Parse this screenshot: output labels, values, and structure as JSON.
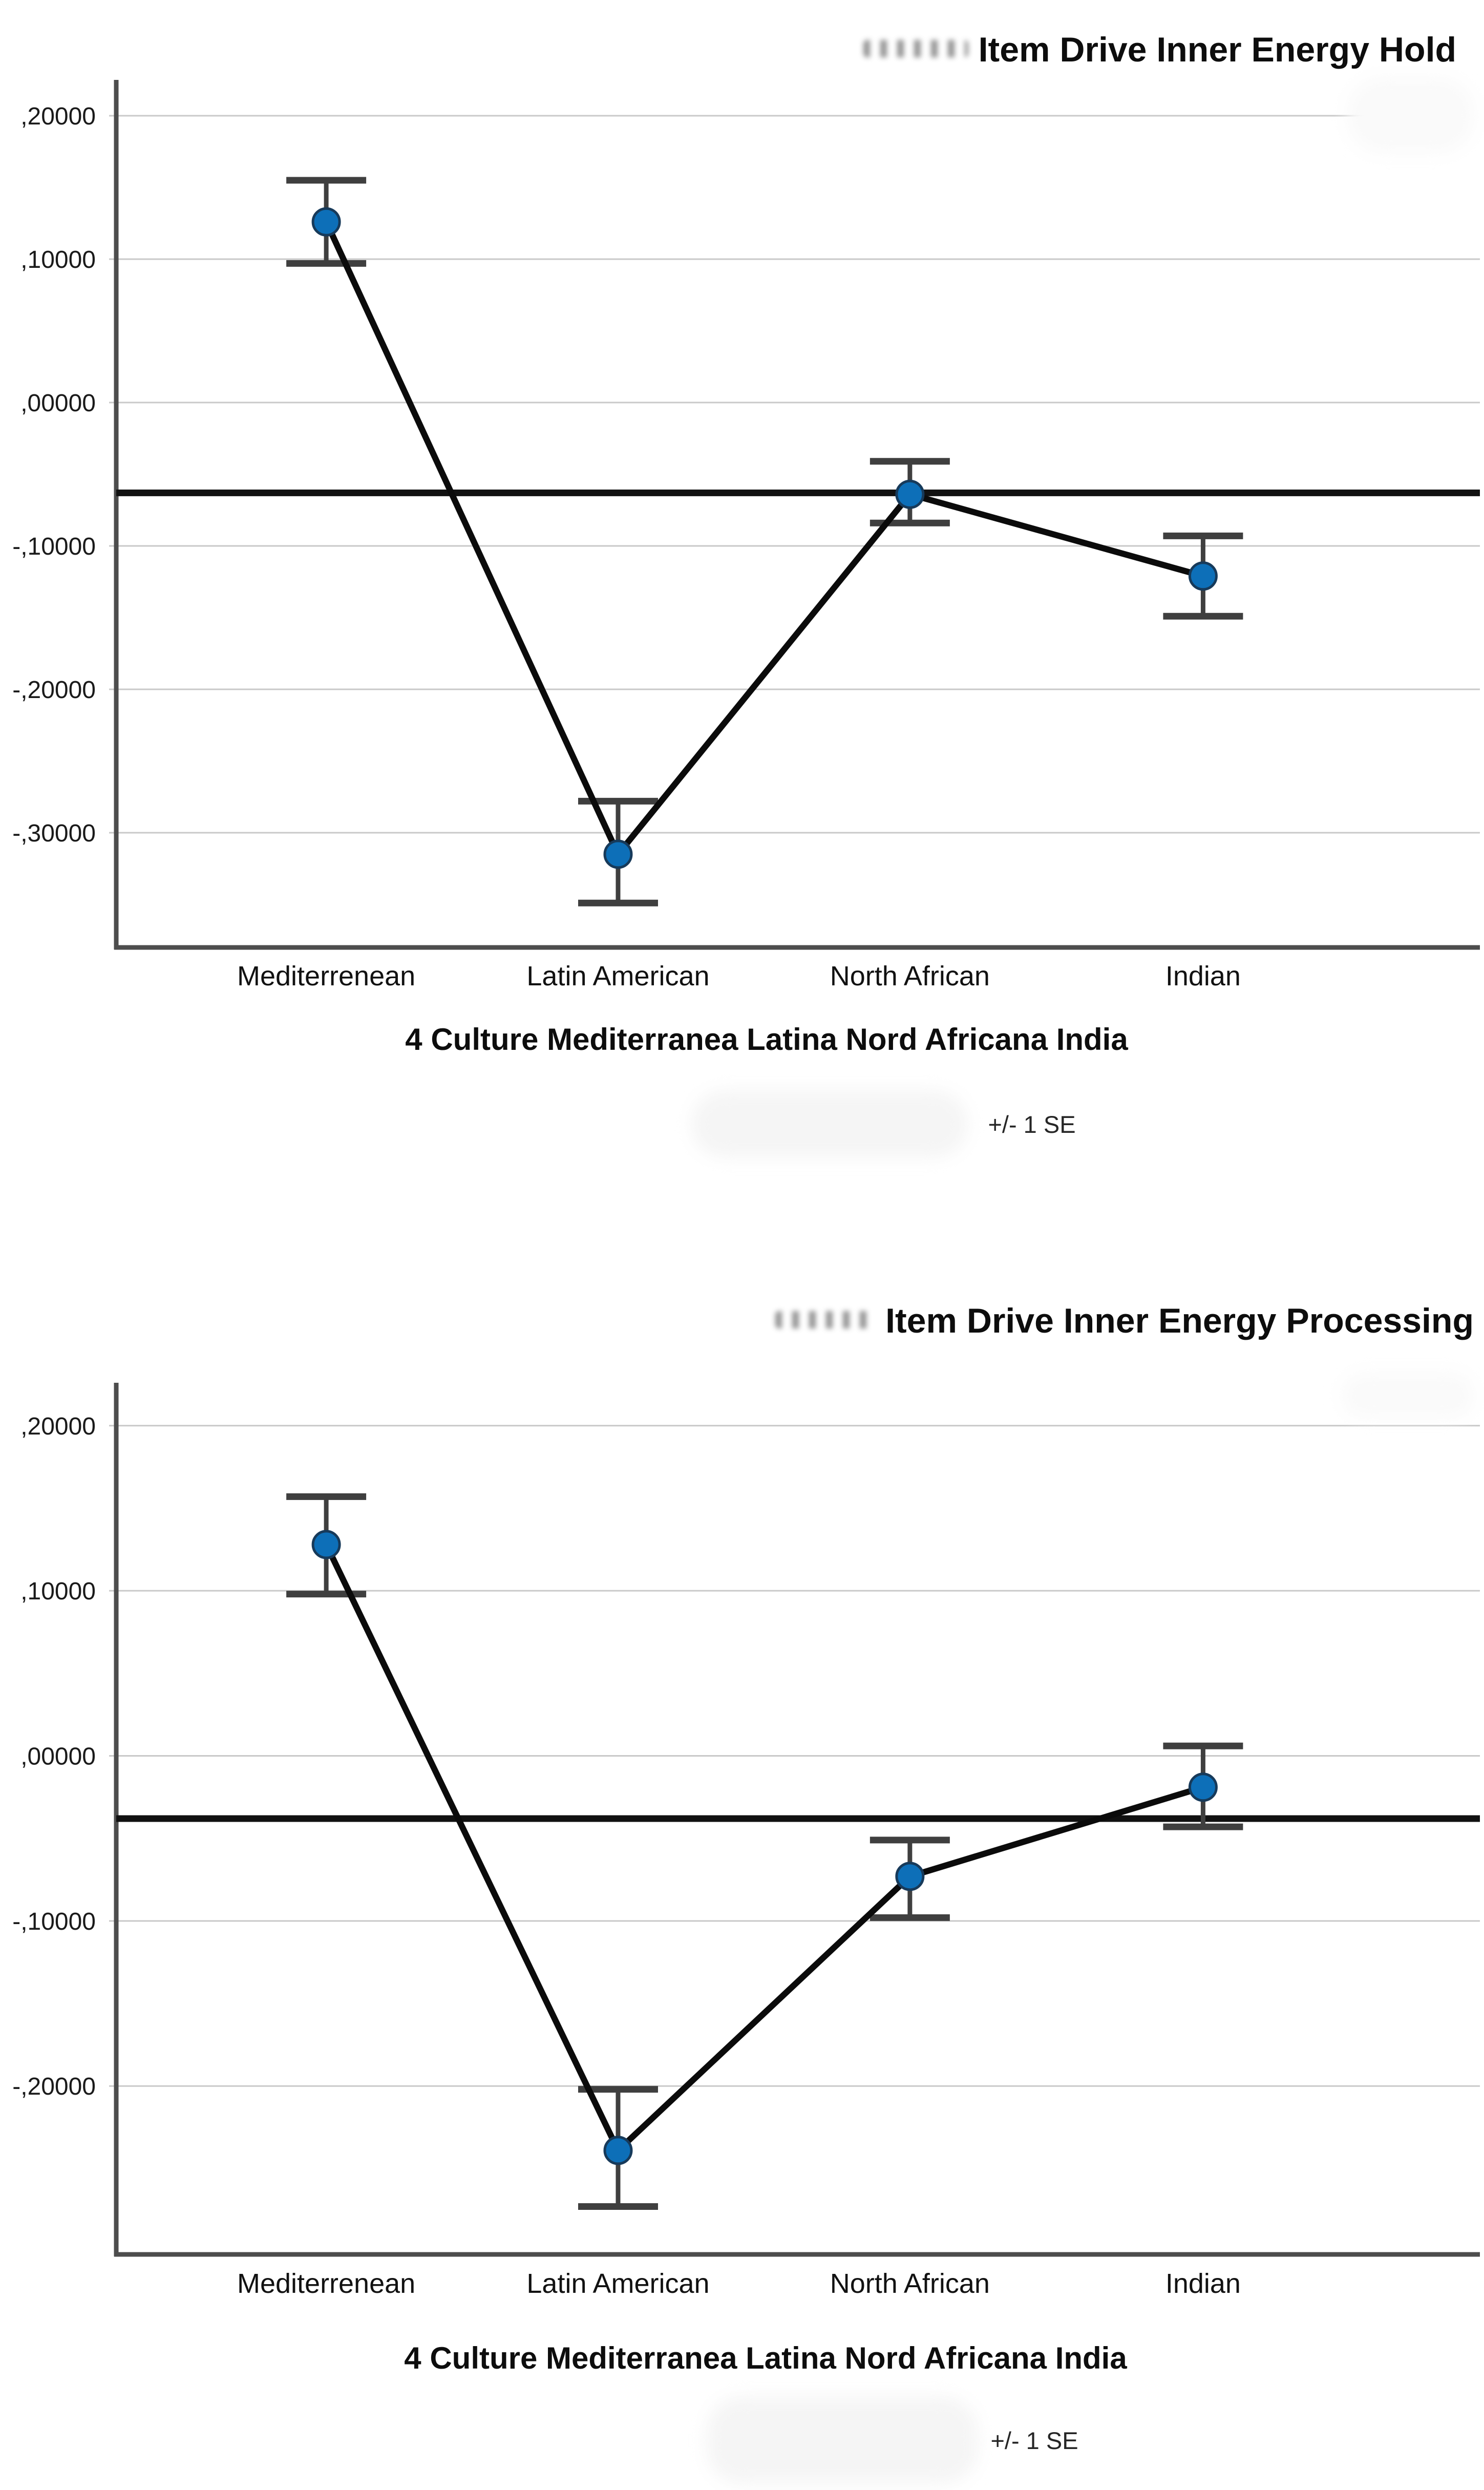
{
  "page": {
    "background": "#ffffff"
  },
  "style_colors": {
    "marker_fill": "#0d6fb8",
    "marker_edge": "#173a5a",
    "mean_line": "#0b0b0b",
    "reference_line": "#111111",
    "error_bar": "#3f3f3f",
    "gridline": "#c9c9c9",
    "axis": "#4d4d4d",
    "tick_text": "#1a1a1a",
    "category_text": "#111111"
  },
  "chart_data": [
    {
      "type": "line",
      "title": "Item Drive Inner Energy Hold",
      "title_prefix_redacted": true,
      "categories": [
        "Mediterrenean",
        "Latin American",
        "North African",
        "Indian"
      ],
      "series": [
        {
          "name": "mean",
          "values": [
            0.126,
            -0.315,
            -0.064,
            -0.121
          ]
        },
        {
          "name": "upper_se_cap",
          "values": [
            0.155,
            -0.278,
            -0.041,
            -0.093
          ]
        },
        {
          "name": "lower_se_cap",
          "values": [
            0.097,
            -0.349,
            -0.084,
            -0.149
          ]
        }
      ],
      "reference_line": -0.063,
      "error_bars": "+/- 1 SE",
      "xlabel": "4 Culture Mediterranea Latina Nord Africana India",
      "caption": "+/- 1 SE",
      "ylim": [
        -0.38,
        0.225
      ],
      "grid": true,
      "legend_position": "none",
      "y_ticks": {
        "values": [
          0.2,
          0.1,
          0.0,
          -0.1,
          -0.2,
          -0.3
        ],
        "labels": [
          ",20000",
          ",10000",
          ",00000",
          "-,10000",
          "-,20000",
          "-,30000"
        ]
      }
    },
    {
      "type": "line",
      "title": "Item Drive Inner Energy Processing",
      "title_prefix_redacted": true,
      "categories": [
        "Mediterrenean",
        "Latin American",
        "North African",
        "Indian"
      ],
      "series": [
        {
          "name": "mean",
          "values": [
            0.128,
            -0.239,
            -0.073,
            -0.019
          ]
        },
        {
          "name": "upper_se_cap",
          "values": [
            0.157,
            -0.202,
            -0.051,
            0.006
          ]
        },
        {
          "name": "lower_se_cap",
          "values": [
            0.098,
            -0.273,
            -0.098,
            -0.043
          ]
        }
      ],
      "reference_line": -0.038,
      "error_bars": "+/- 1 SE",
      "xlabel": "4 Culture Mediterranea Latina Nord Africana India",
      "caption": "+/- 1 SE",
      "ylim": [
        -0.302,
        0.226
      ],
      "grid": true,
      "legend_position": "none",
      "y_ticks": {
        "values": [
          0.2,
          0.1,
          0.0,
          -0.1,
          -0.2
        ],
        "labels": [
          ",20000",
          ",10000",
          ",00000",
          "-,10000",
          "-,20000"
        ]
      }
    }
  ]
}
